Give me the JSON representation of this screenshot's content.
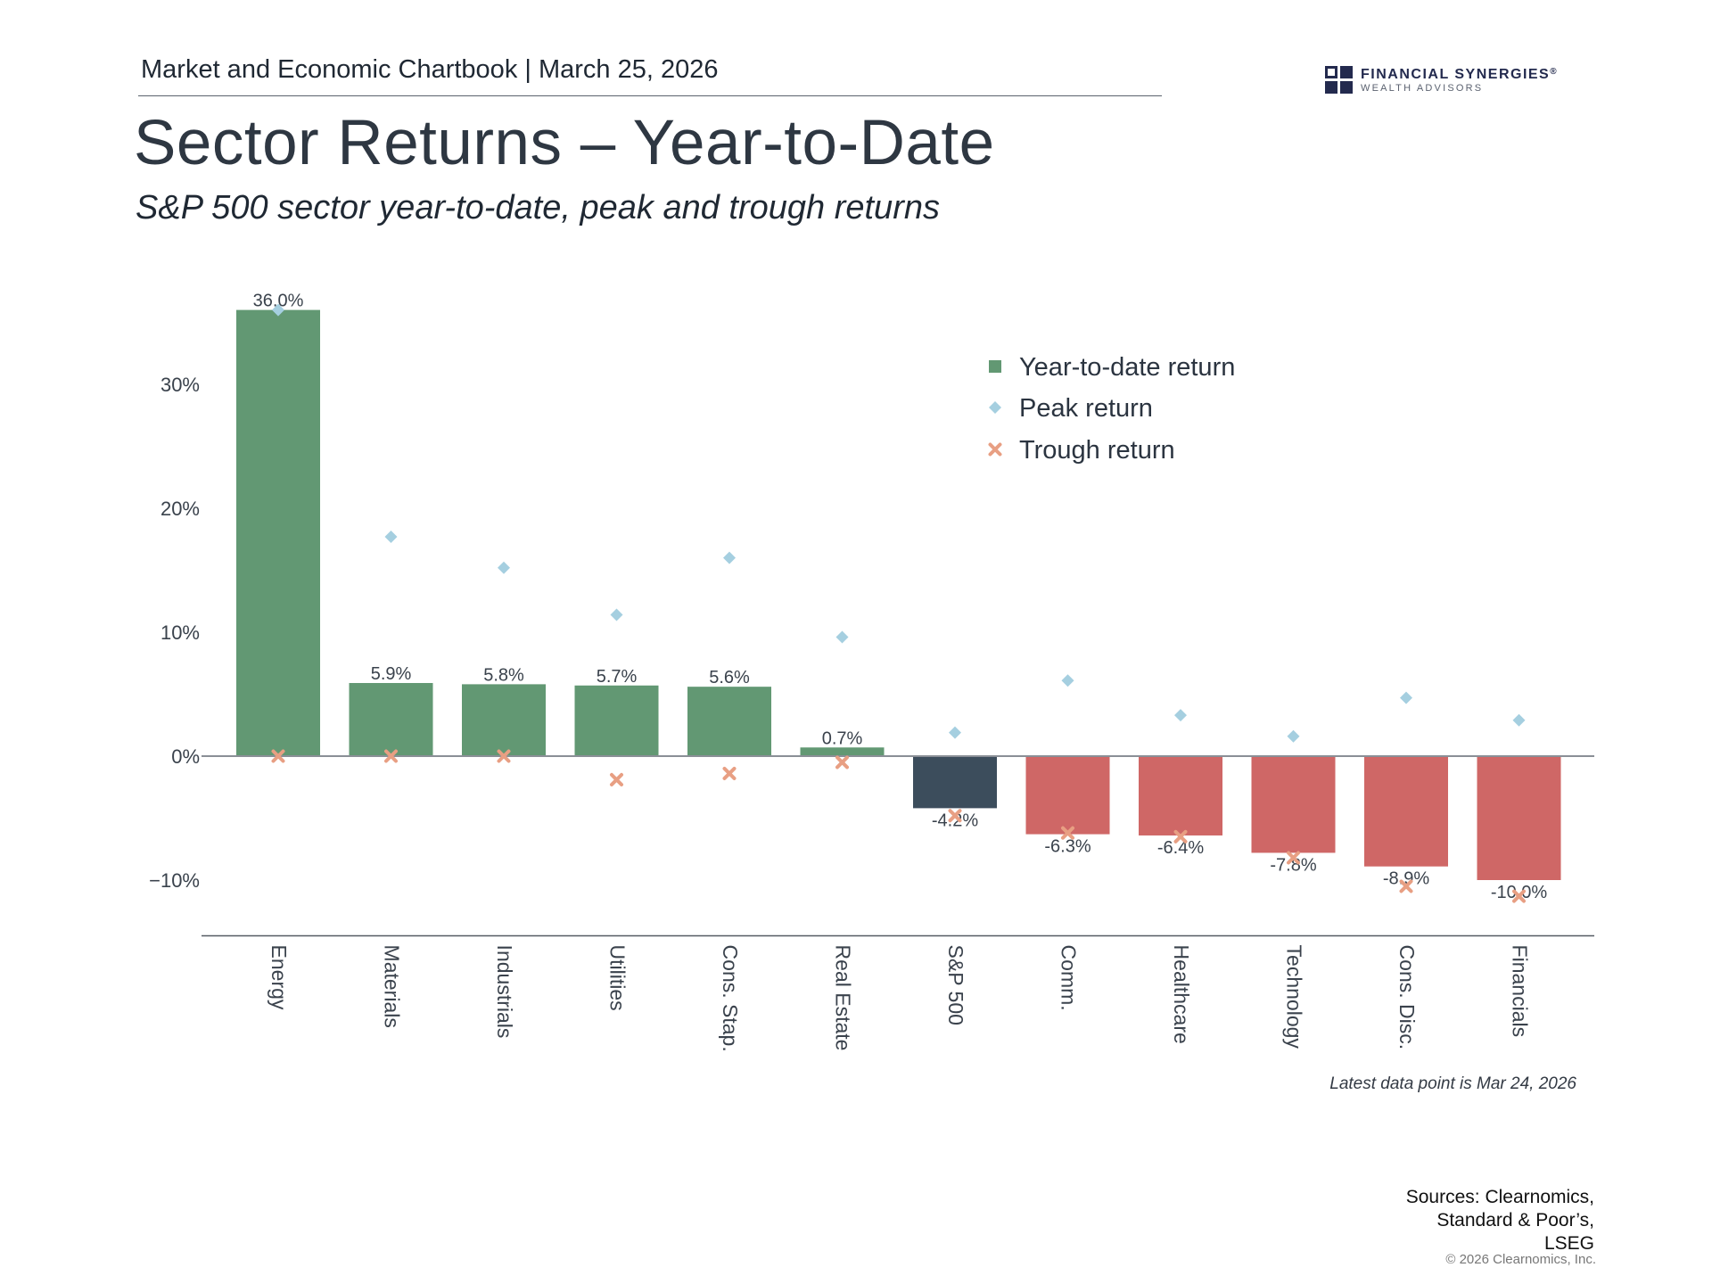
{
  "header": {
    "chartbook_title": "Market and Economic Chartbook",
    "separator": "|",
    "date": "March 25, 2026"
  },
  "logo": {
    "name": "FINANCIAL SYNERGIES",
    "registered_mark": "®",
    "subtitle": "WEALTH ADVISORS",
    "icon": "logo-grid-icon",
    "color": "#232a4e"
  },
  "page_title": "Sector Returns – Year-to-Date",
  "page_subtitle": "S&P 500 sector year-to-date, peak and trough returns",
  "chart_data": {
    "type": "bar",
    "title": "",
    "xlabel": "",
    "ylabel": "",
    "ylim": [
      -14.5,
      37.5
    ],
    "yticks": [
      -10,
      0,
      10,
      20,
      30
    ],
    "ytick_labels": [
      "−10%",
      "0%",
      "10%",
      "20%",
      "30%"
    ],
    "grid": false,
    "legend_position": "top-right",
    "categories": [
      "Energy",
      "Materials",
      "Industrials",
      "Utilities",
      "Cons. Stap.",
      "Real Estate",
      "S&P 500",
      "Comm.",
      "Healthcare",
      "Technology",
      "Cons. Disc.",
      "Financials"
    ],
    "series": [
      {
        "name": "Year-to-date return",
        "kind": "bar",
        "values": [
          36.0,
          5.9,
          5.8,
          5.7,
          5.6,
          0.7,
          -4.2,
          -6.3,
          -6.4,
          -7.8,
          -8.9,
          -10.0
        ],
        "labels": [
          "36.0%",
          "5.9%",
          "5.8%",
          "5.7%",
          "5.6%",
          "0.7%",
          "-4.2%",
          "-6.3%",
          "-6.4%",
          "-7.8%",
          "-8.9%",
          "-10.0%"
        ]
      },
      {
        "name": "Peak return",
        "kind": "diamond",
        "values": [
          36.0,
          17.7,
          15.2,
          11.4,
          16.0,
          9.6,
          1.9,
          6.1,
          3.3,
          1.6,
          4.7,
          2.9
        ]
      },
      {
        "name": "Trough return",
        "kind": "x",
        "values": [
          0.0,
          0.0,
          0.0,
          -1.9,
          -1.4,
          -0.5,
          -4.8,
          -6.2,
          -6.5,
          -8.2,
          -10.5,
          -11.3
        ]
      }
    ],
    "colors": {
      "positive": "#629873",
      "benchmark": "#3c4d5c",
      "negative": "#cf6766",
      "peak": "#a5cfe0",
      "trough": "#e89f83",
      "axis": "#8a8f96"
    }
  },
  "footnote": "Latest data point is Mar 24, 2026",
  "sources": {
    "line1": "Sources: Clearnomics,",
    "line2": "Standard & Poor’s,",
    "line3": "LSEG"
  },
  "copyright": "© 2026 Clearnomics, Inc."
}
